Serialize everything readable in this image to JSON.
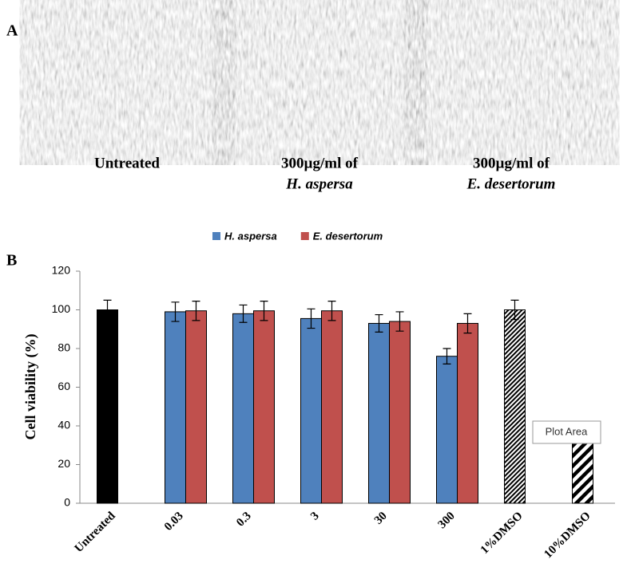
{
  "panels": [
    {
      "label": "A"
    },
    {
      "label": "B"
    }
  ],
  "images": [
    {
      "caption": [
        "Untreated"
      ]
    },
    {
      "caption": [
        "300µg/ml of",
        "H. aspersa"
      ]
    },
    {
      "caption": [
        "300µg/ml of",
        "E. desertorum"
      ]
    }
  ],
  "chart_data": {
    "type": "bar",
    "ylabel": "Cell viability  (%)",
    "categories": [
      "Untreated",
      "0.03",
      "0.3",
      "3",
      "30",
      "300",
      "1%DMSO",
      "10%DMSO"
    ],
    "values": [
      100,
      null,
      null,
      null,
      null,
      null,
      100,
      32
    ],
    "errors": [
      5,
      null,
      null,
      null,
      null,
      null,
      5,
      null
    ],
    "color": "#000000",
    "patterns": [
      "solid",
      null,
      null,
      null,
      null,
      null,
      "hatch-fine",
      "hatch-wide"
    ],
    "series": [
      {
        "name": "H. aspersa",
        "color": "#4f81bd",
        "values": [
          null,
          99,
          98,
          95.5,
          93,
          76,
          null,
          null
        ],
        "errors": [
          null,
          5,
          4.5,
          5,
          4.5,
          4,
          null,
          null
        ]
      },
      {
        "name": "E. desertorum",
        "color": "#c0504d",
        "values": [
          null,
          99.5,
          99.5,
          99.5,
          94,
          93,
          null,
          null
        ],
        "errors": [
          null,
          5,
          5,
          5,
          5,
          5,
          null,
          null
        ]
      }
    ],
    "ylim": [
      0,
      120
    ],
    "yticks": [
      0,
      20,
      40,
      60,
      80,
      100,
      120
    ],
    "tooltip": "Plot Area"
  }
}
